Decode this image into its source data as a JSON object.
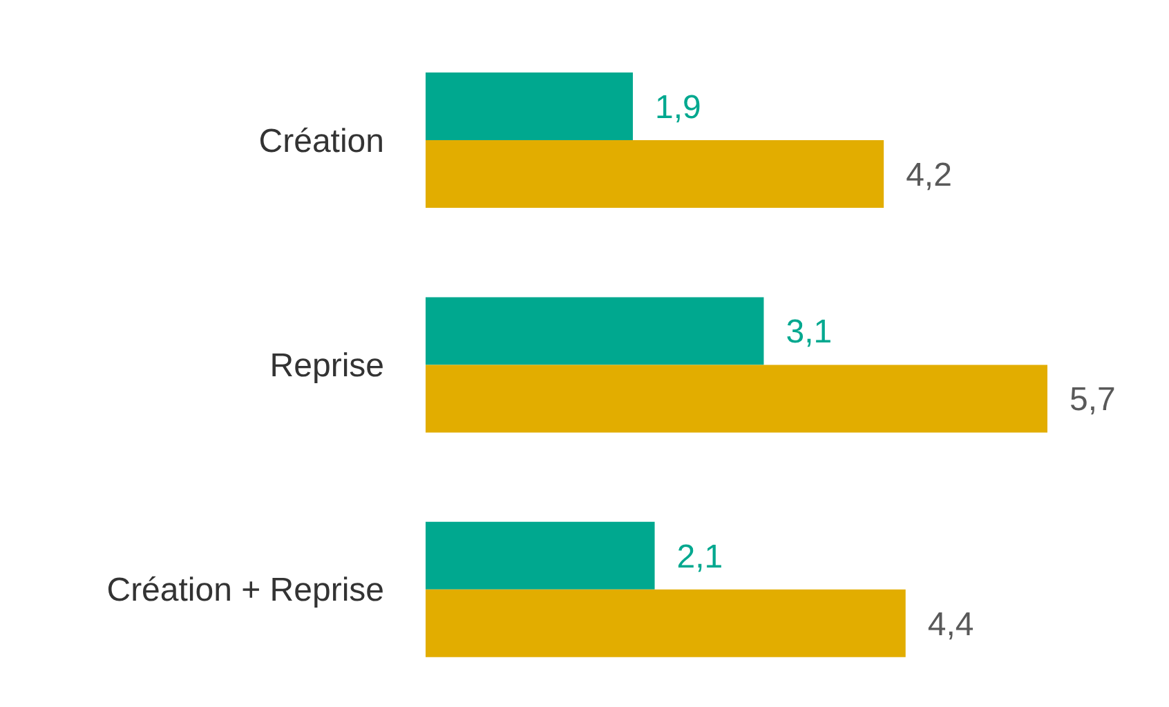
{
  "chart_data": {
    "type": "bar",
    "orientation": "horizontal",
    "categories": [
      "Création",
      "Reprise",
      "Création + Reprise"
    ],
    "series": [
      {
        "color": "#00a88f",
        "values": [
          1.9,
          3.1,
          2.1
        ],
        "value_labels": [
          "1,9",
          "3,1",
          "2,1"
        ]
      },
      {
        "color": "#e2ad00",
        "values": [
          4.2,
          5.7,
          4.4
        ],
        "value_labels": [
          "4,2",
          "5,7",
          "4,4"
        ]
      }
    ],
    "legend": false
  }
}
